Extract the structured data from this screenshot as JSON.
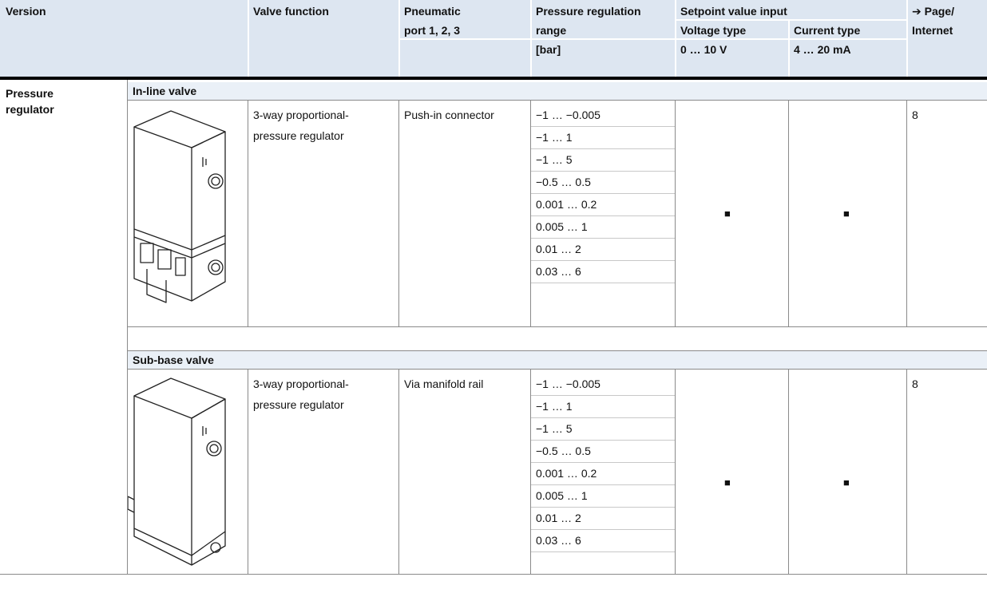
{
  "header": {
    "version": "Version",
    "valve_function": "Valve function",
    "pneumatic_line1": "Pneumatic",
    "pneumatic_line2": "port 1, 2, 3",
    "pressure_line1": "Pressure regulation",
    "pressure_line2": "range",
    "pressure_unit": "[bar]",
    "setpoint": "Setpoint value input",
    "voltage_type": "Voltage type",
    "current_type": "Current type",
    "voltage_range": "0 … 10 V",
    "current_range": "4 … 20 mA",
    "page_line1": "➔ Page/",
    "page_line2": "Internet"
  },
  "group": {
    "line1": "Pressure",
    "line2": "regulator"
  },
  "sections": [
    {
      "title": "In-line valve",
      "valve_function_line1": "3-way proportional-",
      "valve_function_line2": "pressure regulator",
      "pneumatic_port": "Push-in connector",
      "ranges": [
        "−1 … −0.005",
        "−1 … 1",
        "−1 … 5",
        "−0.5 … 0.5",
        "0.001 … 0.2",
        "0.005 … 1",
        "0.01 … 2",
        "0.03 … 6"
      ],
      "voltage_mark": "■",
      "current_mark": "■",
      "page": "8",
      "image_icon": "inline-valve-illustration"
    },
    {
      "title": "Sub-base valve",
      "valve_function_line1": "3-way proportional-",
      "valve_function_line2": "pressure regulator",
      "pneumatic_port": "Via manifold rail",
      "ranges": [
        "−1 … −0.005",
        "−1 … 1",
        "−1 … 5",
        "−0.5 … 0.5",
        "0.001 … 0.2",
        "0.005 … 1",
        "0.01 … 2",
        "0.03 … 6"
      ],
      "voltage_mark": "■",
      "current_mark": "■",
      "page": "8",
      "image_icon": "subbase-valve-illustration"
    }
  ],
  "colors": {
    "header_bg": "#dde6f1",
    "section_band_bg": "#eaf0f7",
    "rule": "#000000"
  }
}
